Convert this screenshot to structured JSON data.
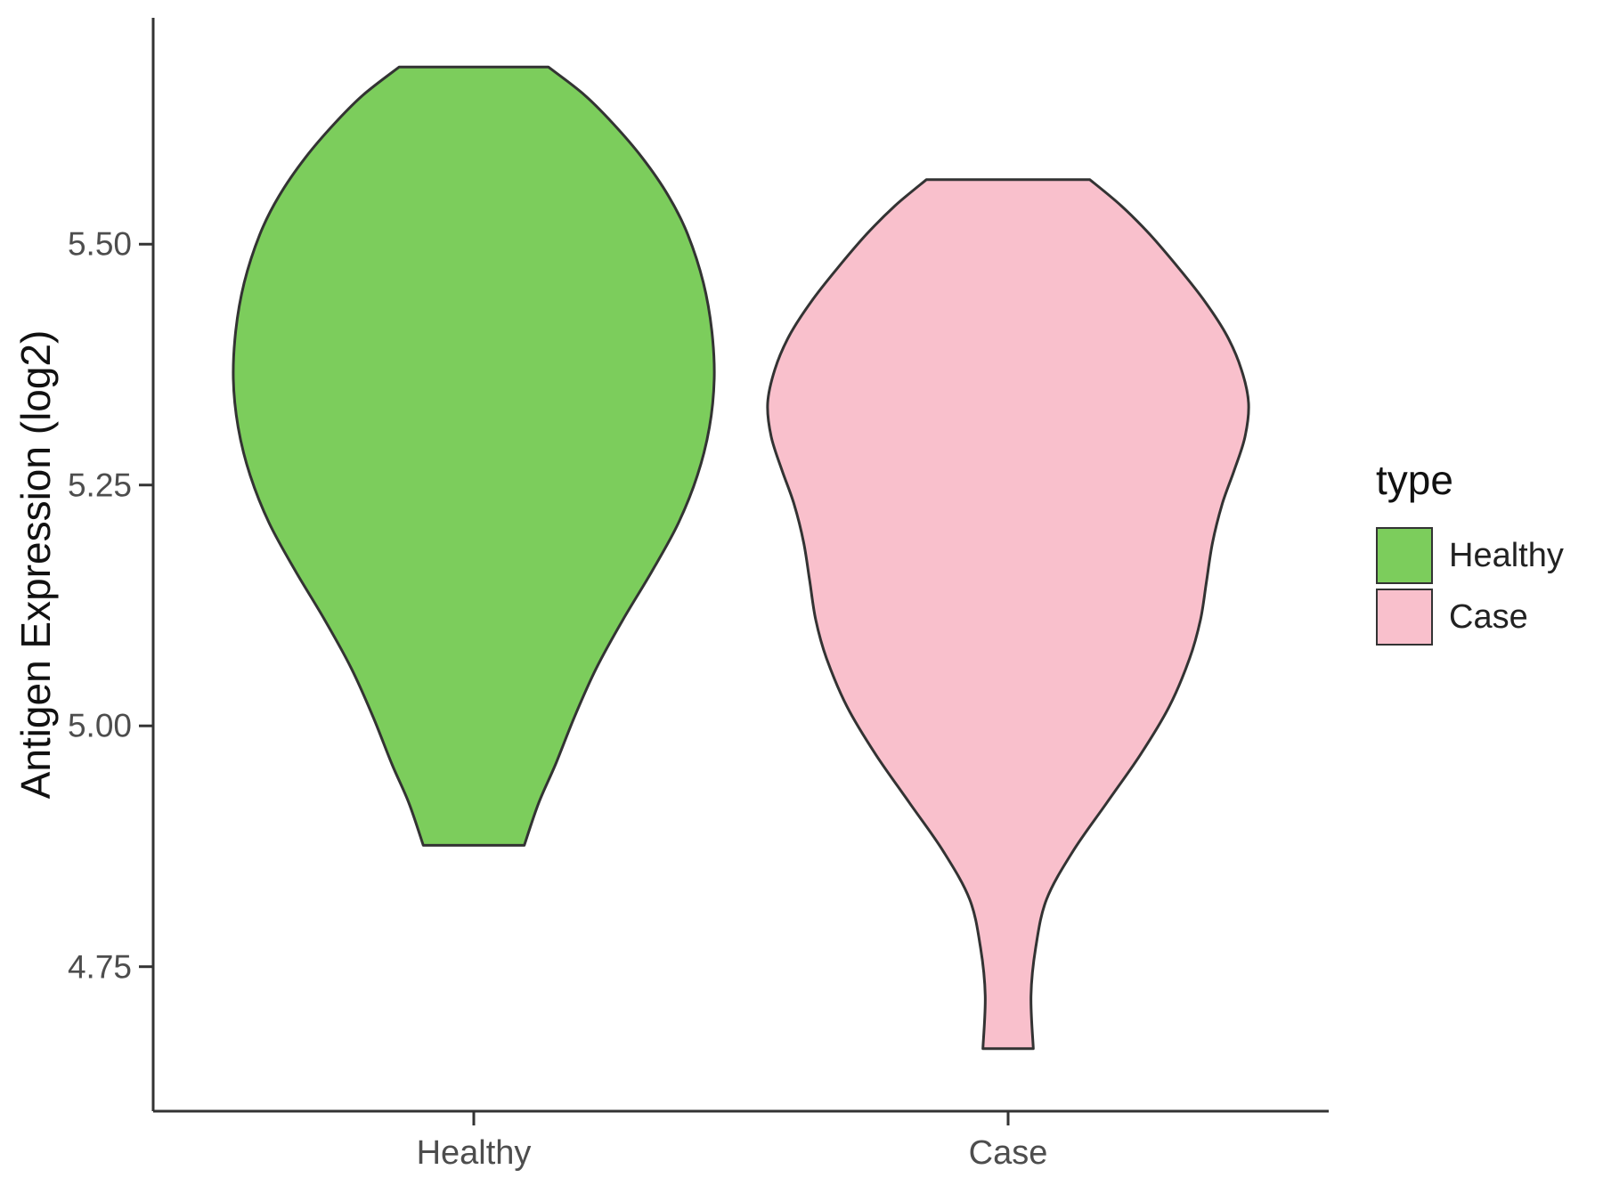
{
  "chart_data": {
    "type": "violin",
    "title": "",
    "xlabel": "",
    "ylabel": "Antigen Expression (log2)",
    "categories": [
      "Healthy",
      "Case"
    ],
    "x_positions": [
      1,
      2
    ],
    "y_ticks": [
      4.75,
      5.0,
      5.25,
      5.5
    ],
    "ylim": [
      4.6,
      5.735
    ],
    "grid": false,
    "legend_position": "right",
    "outline_color": "#333333",
    "axis_color": "#333333",
    "tick_text_color": "#4d4d4d",
    "legend": {
      "title": "type",
      "entries": [
        {
          "label": "Healthy",
          "color": "#7CCD5C"
        },
        {
          "label": "Case",
          "color": "#F9C0CC"
        }
      ]
    },
    "series": [
      {
        "name": "Healthy",
        "color": "#7CCD5C",
        "center": 1,
        "y_min": 4.876,
        "y_max": 5.684,
        "profile": [
          [
            5.684,
            0.31
          ],
          [
            5.655,
            0.46
          ],
          [
            5.625,
            0.58
          ],
          [
            5.59,
            0.7
          ],
          [
            5.55,
            0.81
          ],
          [
            5.51,
            0.89
          ],
          [
            5.46,
            0.955
          ],
          [
            5.41,
            0.99
          ],
          [
            5.36,
            1.0
          ],
          [
            5.31,
            0.98
          ],
          [
            5.26,
            0.93
          ],
          [
            5.21,
            0.85
          ],
          [
            5.16,
            0.74
          ],
          [
            5.11,
            0.62
          ],
          [
            5.06,
            0.51
          ],
          [
            5.01,
            0.42
          ],
          [
            4.96,
            0.34
          ],
          [
            4.92,
            0.27
          ],
          [
            4.876,
            0.21
          ]
        ]
      },
      {
        "name": "Case",
        "color": "#F9C0CC",
        "center": 2,
        "y_min": 4.665,
        "y_max": 5.567,
        "profile": [
          [
            5.567,
            0.34
          ],
          [
            5.54,
            0.47
          ],
          [
            5.51,
            0.59
          ],
          [
            5.475,
            0.71
          ],
          [
            5.44,
            0.82
          ],
          [
            5.405,
            0.91
          ],
          [
            5.37,
            0.97
          ],
          [
            5.335,
            1.0
          ],
          [
            5.3,
            0.985
          ],
          [
            5.265,
            0.94
          ],
          [
            5.23,
            0.89
          ],
          [
            5.19,
            0.85
          ],
          [
            5.15,
            0.825
          ],
          [
            5.11,
            0.8
          ],
          [
            5.07,
            0.755
          ],
          [
            5.02,
            0.67
          ],
          [
            4.97,
            0.55
          ],
          [
            4.92,
            0.41
          ],
          [
            4.87,
            0.27
          ],
          [
            4.82,
            0.16
          ],
          [
            4.77,
            0.115
          ],
          [
            4.72,
            0.095
          ],
          [
            4.665,
            0.105
          ]
        ]
      }
    ]
  }
}
